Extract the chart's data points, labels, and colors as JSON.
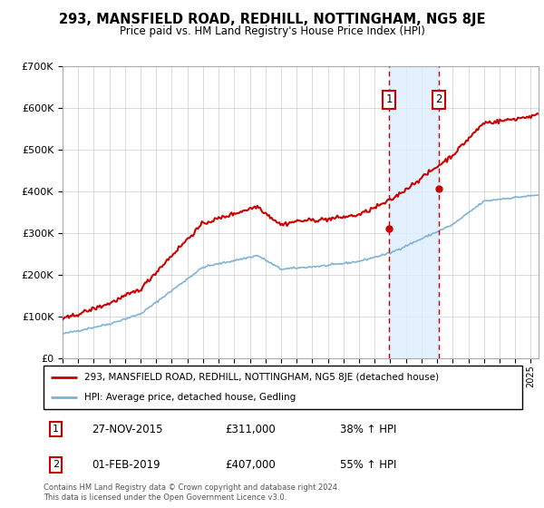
{
  "title": "293, MANSFIELD ROAD, REDHILL, NOTTINGHAM, NG5 8JE",
  "subtitle": "Price paid vs. HM Land Registry's House Price Index (HPI)",
  "legend_label_red": "293, MANSFIELD ROAD, REDHILL, NOTTINGHAM, NG5 8JE (detached house)",
  "legend_label_blue": "HPI: Average price, detached house, Gedling",
  "sale1_date": "27-NOV-2015",
  "sale1_price": 311000,
  "sale1_label": "38% ↑ HPI",
  "sale1_year": 2015.91,
  "sale2_date": "01-FEB-2019",
  "sale2_price": 407000,
  "sale2_label": "55% ↑ HPI",
  "sale2_year": 2019.09,
  "annotation1": "1",
  "annotation2": "2",
  "footer": "Contains HM Land Registry data © Crown copyright and database right 2024.\nThis data is licensed under the Open Government Licence v3.0.",
  "red_color": "#cc0000",
  "blue_color": "#7fb3d3",
  "shade_color": "#ddeeff",
  "ylim_min": 0,
  "ylim_max": 700000,
  "xmin": 1995.0,
  "xmax": 2025.5
}
